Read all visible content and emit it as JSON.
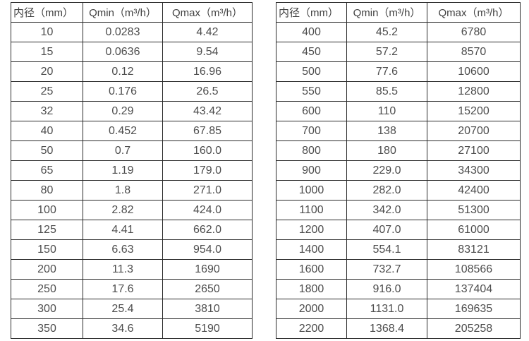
{
  "page": {
    "background_color": "#ffffff",
    "text_color": "#4d4d4d",
    "border_color": "#2b2b2b"
  },
  "chart_data": [
    {
      "type": "table",
      "title": "",
      "columns": [
        "内径（mm）",
        "Qmin（m³/h）",
        "Qmax（m³/h）"
      ],
      "rows": [
        [
          "10",
          "0.0283",
          "4.42"
        ],
        [
          "15",
          "0.0636",
          "9.54"
        ],
        [
          "20",
          "0.12",
          "16.96"
        ],
        [
          "25",
          "0.176",
          "26.5"
        ],
        [
          "32",
          "0.29",
          "43.42"
        ],
        [
          "40",
          "0.452",
          "67.85"
        ],
        [
          "50",
          "0.7",
          "160.0"
        ],
        [
          "65",
          "1.19",
          "179.0"
        ],
        [
          "80",
          "1.8",
          "271.0"
        ],
        [
          "100",
          "2.82",
          "424.0"
        ],
        [
          "125",
          "4.41",
          "662.0"
        ],
        [
          "150",
          "6.63",
          "954.0"
        ],
        [
          "200",
          "11.3",
          "1690"
        ],
        [
          "250",
          "17.6",
          "2650"
        ],
        [
          "300",
          "25.4",
          "3810"
        ],
        [
          "350",
          "34.6",
          "5190"
        ]
      ]
    },
    {
      "type": "table",
      "title": "",
      "columns": [
        "内径（mm）",
        "Qmin（m³/h）",
        "Qmax（m³/h）"
      ],
      "rows": [
        [
          "400",
          "45.2",
          "6780"
        ],
        [
          "450",
          "57.2",
          "8570"
        ],
        [
          "500",
          "77.6",
          "10600"
        ],
        [
          "550",
          "85.5",
          "12800"
        ],
        [
          "600",
          "110",
          "15200"
        ],
        [
          "700",
          "138",
          "20700"
        ],
        [
          "800",
          "180",
          "27100"
        ],
        [
          "900",
          "229.0",
          "34300"
        ],
        [
          "1000",
          "282.0",
          "42400"
        ],
        [
          "1100",
          "342.0",
          "51300"
        ],
        [
          "1200",
          "407.0",
          "61000"
        ],
        [
          "1400",
          "554.1",
          "83121"
        ],
        [
          "1600",
          "732.7",
          "108566"
        ],
        [
          "1800",
          "916.0",
          "137404"
        ],
        [
          "2000",
          "1131.0",
          "169635"
        ],
        [
          "2200",
          "1368.4",
          "205258"
        ]
      ]
    }
  ]
}
